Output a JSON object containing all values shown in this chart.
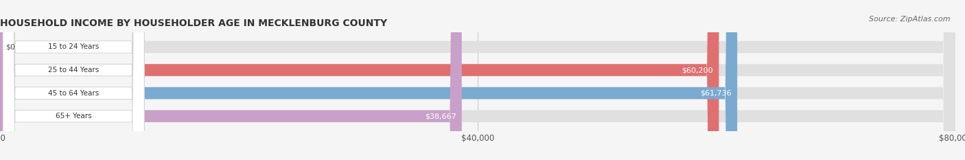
{
  "title": "HOUSEHOLD INCOME BY HOUSEHOLDER AGE IN MECKLENBURG COUNTY",
  "source": "Source: ZipAtlas.com",
  "categories": [
    "15 to 24 Years",
    "25 to 44 Years",
    "45 to 64 Years",
    "65+ Years"
  ],
  "values": [
    0,
    60200,
    61736,
    38667
  ],
  "bar_colors": [
    "#e8c99a",
    "#e07070",
    "#7aaad0",
    "#c9a0c9"
  ],
  "label_texts": [
    "$0",
    "$60,200",
    "$61,736",
    "$38,667"
  ],
  "xlim": [
    0,
    80000
  ],
  "xtick_labels": [
    "$0",
    "$40,000",
    "$80,000"
  ],
  "title_fontsize": 10,
  "source_fontsize": 8,
  "bar_height": 0.52,
  "background_color": "#f5f5f5"
}
